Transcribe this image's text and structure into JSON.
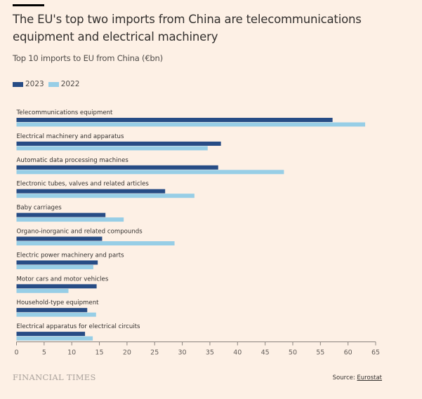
{
  "header": {
    "title": "The EU's top two imports from China are telecommunications equipment and electrical machinery",
    "subtitle": "Top 10 imports to EU from China (€bn)"
  },
  "legend": [
    {
      "label": "2023",
      "color": "#274c85"
    },
    {
      "label": "2022",
      "color": "#97cee6"
    }
  ],
  "footer": {
    "brand": "FINANCIAL TIMES",
    "source_prefix": "Source: ",
    "source_link": "Eurostat"
  },
  "chart_data": {
    "type": "bar",
    "orientation": "horizontal",
    "title": "The EU's top two imports from China are telecommunications equipment and electrical machinery",
    "subtitle": "Top 10 imports to EU from China (€bn)",
    "xlabel": "",
    "ylabel": "",
    "xlim": [
      0,
      65
    ],
    "xticks": [
      0,
      5,
      10,
      15,
      20,
      25,
      30,
      35,
      40,
      45,
      50,
      55,
      60,
      65
    ],
    "grid": false,
    "legend_position": "top-left",
    "categories": [
      "Telecommunications equipment",
      "Electrical machinery and apparatus",
      "Automatic data processing machines",
      "Electronic tubes, valves and related articles",
      "Baby carriages",
      "Organo-inorganic and related compounds",
      "Electric power machinery and parts",
      "Motor cars and motor vehicles",
      "Household-type equipment",
      "Electrical apparatus for electrical circuits"
    ],
    "series": [
      {
        "name": "2023",
        "color": "#274c85",
        "values": [
          57.2,
          37.0,
          36.5,
          26.9,
          16.1,
          15.5,
          14.7,
          14.5,
          12.8,
          12.4
        ]
      },
      {
        "name": "2022",
        "color": "#97cee6",
        "values": [
          63.1,
          34.6,
          48.4,
          32.2,
          19.4,
          28.6,
          13.9,
          9.4,
          14.4,
          13.8
        ]
      }
    ]
  }
}
